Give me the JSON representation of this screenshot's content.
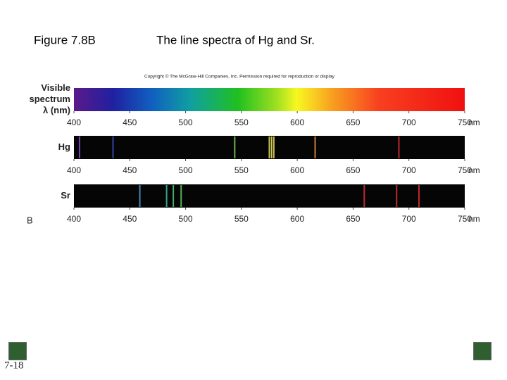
{
  "header": {
    "figure": "Figure 7.8B",
    "title": "The line spectra of Hg and Sr."
  },
  "copyright": "Copyright © The McGraw-Hill Companies, Inc. Permission required for reproduction or display",
  "panel_label": "B",
  "page_number": "7-18",
  "chart_data": [
    {
      "type": "spectrum",
      "label": [
        "Visible",
        "spectrum",
        "λ (nm)"
      ],
      "xlim": [
        400,
        750
      ],
      "xticks": [
        400,
        450,
        500,
        550,
        600,
        650,
        700,
        750
      ],
      "unit": "nm"
    },
    {
      "type": "lines",
      "label": [
        "Hg"
      ],
      "xlim": [
        400,
        750
      ],
      "xticks": [
        400,
        450,
        500,
        550,
        600,
        650,
        700,
        750
      ],
      "unit": "nm",
      "x": [
        405,
        435,
        544,
        575,
        577,
        579,
        616,
        691
      ],
      "colors": [
        "#8a4fd0",
        "#3a4fc0",
        "#7fd060",
        "#e8e860",
        "#f0f070",
        "#f4e050",
        "#f09040",
        "#e03030"
      ]
    },
    {
      "type": "lines",
      "label": [
        "Sr"
      ],
      "xlim": [
        400,
        750
      ],
      "xticks": [
        400,
        450,
        500,
        550,
        600,
        650,
        700,
        750
      ],
      "unit": "nm",
      "x": [
        459,
        483,
        489,
        496,
        660,
        689,
        709
      ],
      "colors": [
        "#4aa0e0",
        "#40c0a0",
        "#50d070",
        "#60d060",
        "#e03030",
        "#e03030",
        "#e03030"
      ]
    }
  ]
}
